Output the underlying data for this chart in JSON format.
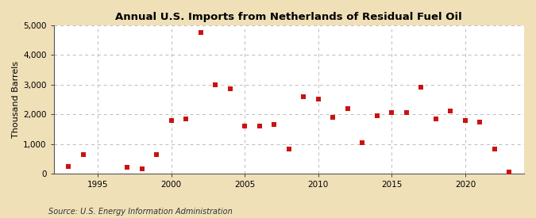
{
  "title": "Annual U.S. Imports from Netherlands of Residual Fuel Oil",
  "ylabel": "Thousand Barrels",
  "source": "Source: U.S. Energy Information Administration",
  "background_color": "#f0e0b8",
  "plot_background_color": "#ffffff",
  "marker_color": "#cc1111",
  "marker": "s",
  "marker_size": 5,
  "xlim": [
    1992,
    2024
  ],
  "ylim": [
    0,
    5000
  ],
  "yticks": [
    0,
    1000,
    2000,
    3000,
    4000,
    5000
  ],
  "xticks": [
    1995,
    2000,
    2005,
    2010,
    2015,
    2020
  ],
  "years": [
    1993,
    1994,
    1997,
    1998,
    1999,
    2000,
    2001,
    2002,
    2003,
    2004,
    2005,
    2006,
    2007,
    2008,
    2009,
    2010,
    2011,
    2012,
    2013,
    2014,
    2015,
    2016,
    2017,
    2018,
    2019,
    2020,
    2021,
    2022,
    2023
  ],
  "values": [
    250,
    650,
    200,
    150,
    650,
    1800,
    1850,
    4750,
    3000,
    2850,
    1600,
    1600,
    1650,
    820,
    2600,
    2500,
    1900,
    2200,
    1050,
    1950,
    2050,
    2050,
    2900,
    1850,
    2100,
    1800,
    1750,
    820,
    50
  ],
  "grid_color": "#aaaaaa",
  "grid_linestyle": "--",
  "grid_alpha": 0.8,
  "spine_color": "#555555",
  "title_fontsize": 9.5,
  "axis_fontsize": 8,
  "tick_fontsize": 7.5,
  "source_fontsize": 7
}
